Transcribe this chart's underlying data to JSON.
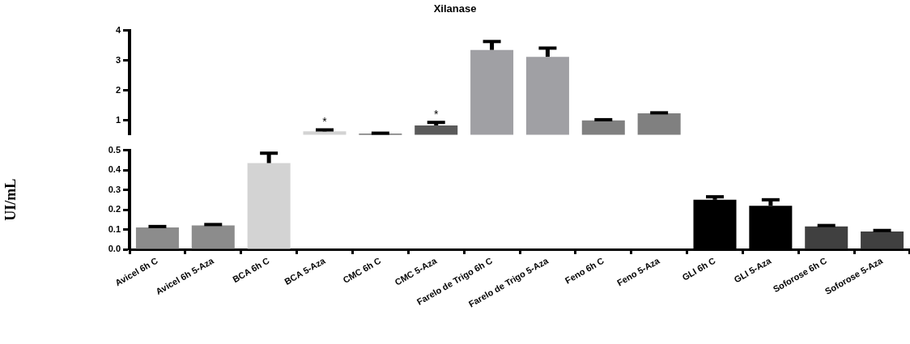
{
  "chart_data": [
    {
      "type": "bar",
      "title": "Xilanase",
      "categories": [
        "Avicel 6h C",
        "Avicel 6h 5-Aza",
        "BCA 6h C",
        "BCA 5-Aza",
        "CMC 6h C",
        "CMC 5-Aza",
        "Farelo de Trigo 6h C",
        "Farelo de Trigo 5-Aza",
        "Feno 6h C",
        "Feno 5-Aza",
        "GLI 6h C",
        "GLI 5-Aza",
        "Soforose 6h C",
        "Soforose 5-Aza"
      ],
      "values": [
        null,
        null,
        null,
        0.63,
        0.55,
        0.83,
        3.35,
        3.12,
        1.0,
        1.23,
        null,
        null,
        null,
        null
      ],
      "errors": [
        null,
        null,
        null,
        [
          0.63,
          0.68
        ],
        [
          0.55,
          0.57
        ],
        [
          0.83,
          0.93
        ],
        [
          3.35,
          3.63
        ],
        [
          3.12,
          3.41
        ],
        [
          1.0,
          1.02
        ],
        [
          1.23,
          1.25
        ],
        null,
        null,
        null,
        null
      ],
      "colors": [
        "#8c8c8c",
        "#8c8c8c",
        "#d3d3d3",
        "#d3d3d3",
        "#5a5a5a",
        "#5a5a5a",
        "#a0a0a4",
        "#a0a0a4",
        "#808080",
        "#808080",
        "#000000",
        "#000000",
        "#404040",
        "#404040"
      ],
      "ylim": [
        0.52,
        4
      ],
      "yticks": [
        1,
        2,
        3,
        4
      ],
      "tick_labels": "y",
      "grid": false,
      "legend": false,
      "annotations": [
        {
          "text": "*",
          "x": "BCA 5-Aza",
          "y": 0.68
        },
        {
          "text": "*",
          "x": "CMC 5-Aza",
          "y": 0.93
        }
      ]
    },
    {
      "type": "bar",
      "ylabel": "UI/mL",
      "categories": [
        "Avicel 6h C",
        "Avicel 6h 5-Aza",
        "BCA 6h C",
        "BCA 5-Aza",
        "CMC 6h C",
        "CMC 5-Aza",
        "Farelo de Trigo 6h C",
        "Farelo de Trigo 5-Aza",
        "Feno 6h C",
        "Feno 5-Aza",
        "GLI 6h C",
        "GLI 5-Aza",
        "Soforose 6h C",
        "Soforose 5-Aza"
      ],
      "values": [
        0.11,
        0.12,
        0.435,
        null,
        null,
        null,
        null,
        null,
        null,
        null,
        0.25,
        0.22,
        0.115,
        0.09
      ],
      "errors": [
        [
          0.11,
          0.115
        ],
        [
          0.12,
          0.125
        ],
        [
          0.435,
          0.485
        ],
        null,
        null,
        null,
        null,
        null,
        null,
        null,
        [
          0.25,
          0.265
        ],
        [
          0.22,
          0.25
        ],
        [
          0.115,
          0.12
        ],
        [
          0.09,
          0.095
        ]
      ],
      "colors": [
        "#8c8c8c",
        "#8c8c8c",
        "#d3d3d3",
        "#d3d3d3",
        "#5a5a5a",
        "#5a5a5a",
        "#a0a0a4",
        "#a0a0a4",
        "#808080",
        "#808080",
        "#000000",
        "#000000",
        "#404040",
        "#404040"
      ],
      "ylim": [
        0,
        0.5
      ],
      "yticks": [
        {
          "value": 0,
          "label": "0.0"
        },
        {
          "value": 0.1,
          "label": "0.1"
        },
        {
          "value": 0.2,
          "label": "0.2"
        },
        {
          "value": 0.3,
          "label": "0.3"
        },
        {
          "value": 0.4,
          "label": "0.4"
        },
        {
          "value": 0.5,
          "label": "0.5"
        }
      ],
      "grid": false,
      "legend": false
    }
  ]
}
